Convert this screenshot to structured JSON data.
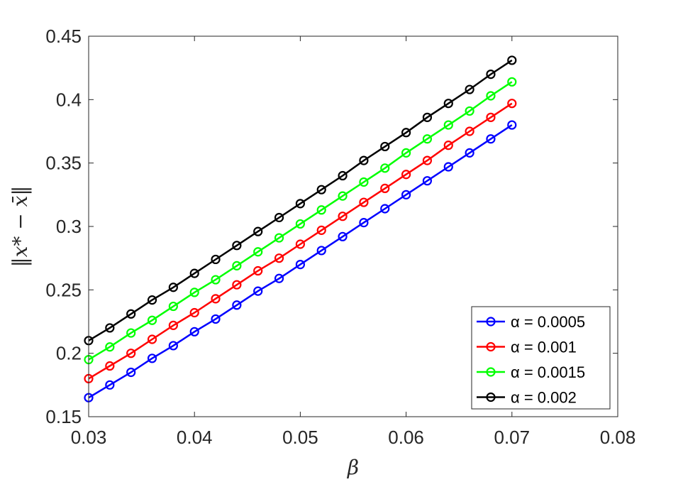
{
  "chart_data": {
    "type": "line",
    "xlabel": "β",
    "ylabel": "‖x* − x̄‖",
    "xlim": [
      0.03,
      0.08
    ],
    "ylim": [
      0.15,
      0.45
    ],
    "xticks": [
      "0.03",
      "0.04",
      "0.05",
      "0.06",
      "0.07",
      "0.08"
    ],
    "yticks": [
      "0.15",
      "0.2",
      "0.25",
      "0.3",
      "0.35",
      "0.4",
      "0.45"
    ],
    "grid": false,
    "legend_position": "bottom-right",
    "marker": "circle",
    "x": [
      0.03,
      0.032,
      0.034,
      0.036,
      0.038,
      0.04,
      0.042,
      0.044,
      0.046,
      0.048,
      0.05,
      0.052,
      0.054,
      0.056,
      0.058,
      0.06,
      0.062,
      0.064,
      0.066,
      0.068,
      0.07
    ],
    "series": [
      {
        "name": "α = 0.0005",
        "color": "#0000ff",
        "values": [
          0.165,
          0.175,
          0.185,
          0.196,
          0.206,
          0.217,
          0.227,
          0.238,
          0.249,
          0.259,
          0.27,
          0.281,
          0.292,
          0.303,
          0.314,
          0.325,
          0.336,
          0.347,
          0.358,
          0.369,
          0.38
        ]
      },
      {
        "name": "α = 0.001",
        "color": "#ff0000",
        "values": [
          0.18,
          0.19,
          0.2,
          0.211,
          0.222,
          0.232,
          0.243,
          0.254,
          0.265,
          0.275,
          0.286,
          0.297,
          0.308,
          0.319,
          0.33,
          0.341,
          0.352,
          0.364,
          0.375,
          0.386,
          0.397
        ]
      },
      {
        "name": "α = 0.0015",
        "color": "#00ff00",
        "values": [
          0.195,
          0.205,
          0.216,
          0.226,
          0.237,
          0.248,
          0.258,
          0.269,
          0.28,
          0.291,
          0.302,
          0.313,
          0.324,
          0.335,
          0.346,
          0.358,
          0.369,
          0.38,
          0.391,
          0.403,
          0.414
        ]
      },
      {
        "name": "α = 0.002",
        "color": "#000000",
        "values": [
          0.21,
          0.22,
          0.231,
          0.242,
          0.252,
          0.263,
          0.274,
          0.285,
          0.296,
          0.307,
          0.318,
          0.329,
          0.34,
          0.352,
          0.363,
          0.374,
          0.386,
          0.397,
          0.408,
          0.42,
          0.431
        ]
      }
    ]
  }
}
